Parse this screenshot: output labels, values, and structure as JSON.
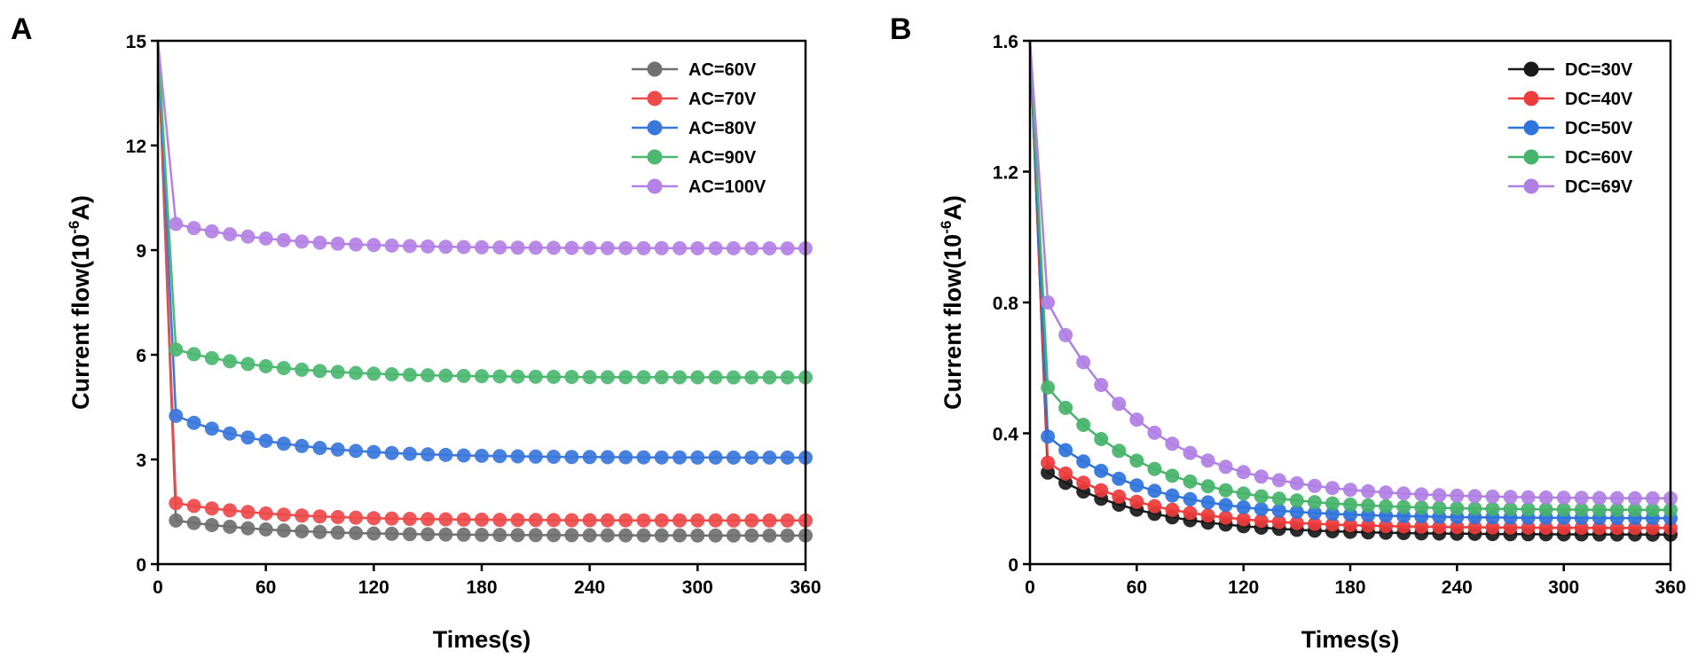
{
  "panels": {
    "a": "A",
    "b": "B"
  },
  "chart_data": [
    {
      "type": "line",
      "panel": "A",
      "xlabel": "Times(s)",
      "ylabel_main": "Current flow(10",
      "ylabel_sup": "-6",
      "ylabel_tail": "A)",
      "xlim": [
        0,
        360
      ],
      "ylim": [
        0,
        15
      ],
      "xticks": [
        0,
        60,
        120,
        180,
        240,
        300,
        360
      ],
      "yticks": [
        0,
        3,
        6,
        9,
        12,
        15
      ],
      "legend_position": "top-right",
      "series": [
        {
          "name": "AC=60V",
          "color": "#707070",
          "start": 15,
          "first": 1.25,
          "end": 0.82
        },
        {
          "name": "AC=70V",
          "color": "#ee4a4a",
          "start": 15,
          "first": 1.75,
          "end": 1.25
        },
        {
          "name": "AC=80V",
          "color": "#3a78dc",
          "start": 15,
          "first": 4.25,
          "end": 3.05
        },
        {
          "name": "AC=90V",
          "color": "#4cb870",
          "start": 15,
          "first": 6.15,
          "end": 5.35
        },
        {
          "name": "AC=100V",
          "color": "#b482e6",
          "start": 15,
          "first": 9.75,
          "end": 9.05
        }
      ]
    },
    {
      "type": "line",
      "panel": "B",
      "xlabel": "Times(s)",
      "ylabel_main": "Current flow(10",
      "ylabel_sup": "-6",
      "ylabel_tail": "A)",
      "xlim": [
        0,
        360
      ],
      "ylim": [
        0,
        1.6
      ],
      "xticks": [
        0,
        60,
        120,
        180,
        240,
        300,
        360
      ],
      "yticks": [
        0,
        0.4,
        0.8,
        1.2,
        1.6
      ],
      "legend_position": "top-right",
      "series": [
        {
          "name": "DC=30V",
          "color": "#1a1a1a",
          "start": 1.6,
          "first": 0.28,
          "end": 0.09
        },
        {
          "name": "DC=40V",
          "color": "#ee3b3b",
          "start": 1.6,
          "first": 0.31,
          "end": 0.11
        },
        {
          "name": "DC=50V",
          "color": "#2f74dc",
          "start": 1.6,
          "first": 0.39,
          "end": 0.14
        },
        {
          "name": "DC=60V",
          "color": "#46b46a",
          "start": 1.6,
          "first": 0.54,
          "end": 0.165
        },
        {
          "name": "DC=69V",
          "color": "#b07fe4",
          "start": 1.6,
          "first": 0.8,
          "end": 0.2
        }
      ]
    }
  ]
}
